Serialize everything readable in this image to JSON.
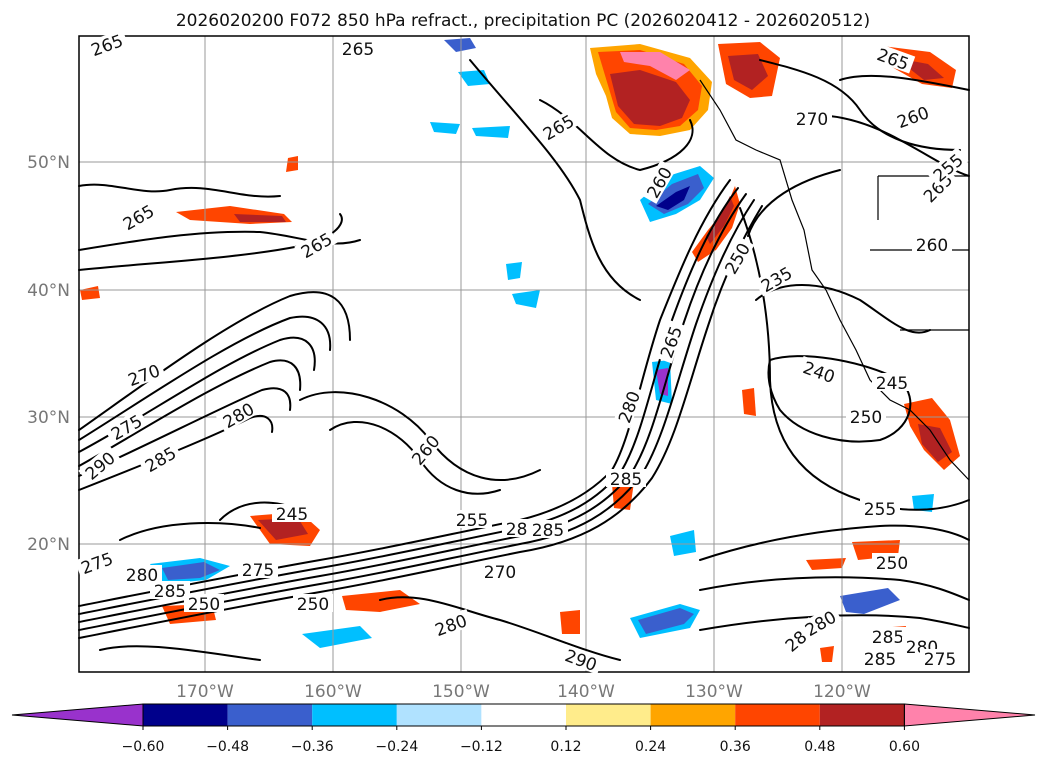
{
  "title": "2026020200 F072 850 hPa refract., precipitation PC (2026020412 - 2026020512)",
  "longitude_labels": [
    "170°W",
    "160°W",
    "150°W",
    "140°W",
    "130°W",
    "120°W"
  ],
  "latitude_labels": [
    "50°N",
    "40°N",
    "30°N",
    "20°N"
  ],
  "contour_labels": [
    "265",
    "265",
    "265",
    "265",
    "265",
    "260",
    "260",
    "270",
    "270",
    "275",
    "280",
    "285",
    "290",
    "260",
    "245",
    "255",
    "265",
    "275",
    "280",
    "285",
    "280",
    "285",
    "280",
    "290",
    "265",
    "250",
    "235",
    "240",
    "245",
    "250",
    "255",
    "250",
    "280",
    "285",
    "280",
    "275",
    "285",
    "275",
    "280",
    "285",
    "280",
    "250",
    "250",
    "265",
    "270",
    "260",
    "255"
  ],
  "colorbar": {
    "colors": [
      "#9932cc",
      "#00008b",
      "#3a5fcd",
      "#00bfff",
      "#b0e2ff",
      "#ffffff",
      "#ffec8b",
      "#ffa500",
      "#ff4500",
      "#b22222",
      "#ff82ab"
    ],
    "tick_labels": [
      "−0.60",
      "−0.48",
      "−0.36",
      "−0.24",
      "−0.12",
      "0.12",
      "0.24",
      "0.36",
      "0.48",
      "0.60"
    ]
  },
  "chart_data": {
    "type": "map",
    "variable": "850 hPa refractivity (contours) and precipitation PC (shaded)",
    "contour_levels": [
      235,
      240,
      245,
      250,
      255,
      260,
      265,
      270,
      275,
      280,
      285,
      290
    ],
    "shading_levels": [
      -0.6,
      -0.48,
      -0.36,
      -0.24,
      -0.12,
      0.12,
      0.24,
      0.36,
      0.48,
      0.6
    ],
    "lon_range": [
      -180,
      -110
    ],
    "lat_range": [
      10,
      60
    ]
  }
}
